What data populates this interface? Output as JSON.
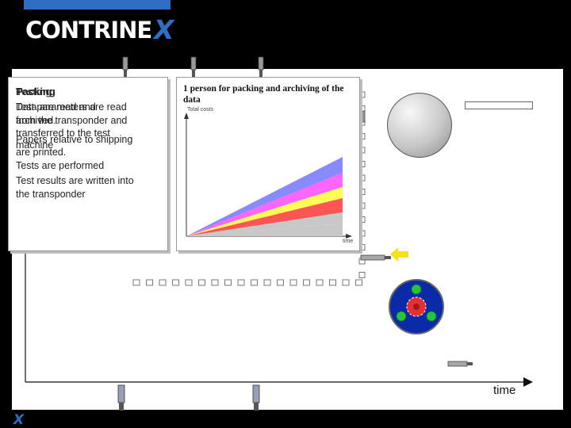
{
  "brand": {
    "logo_text": "CONTRINE",
    "logo_accent": "X",
    "small_logo": "X"
  },
  "left_panel": {
    "title": "Packing",
    "overlaid_titles": [
      "Testing"
    ],
    "lines": [
      "Data are read and",
      "Test parameters are read",
      "archived.",
      "from the transponder and",
      "transferred to the test",
      "Papers relative to shipping",
      "machine",
      "are printed.",
      "Tests are performed",
      "Test results are written into",
      "the transponder"
    ]
  },
  "mid_panel": {
    "caption": "1 person for packing and archiving of the data"
  },
  "chart_data": {
    "type": "area",
    "title": "",
    "ylabel": "Total costs",
    "xlabel": "time",
    "series": [
      {
        "color": "#8a8aff"
      },
      {
        "color": "#ff66ff"
      },
      {
        "color": "#ffff55"
      },
      {
        "color": "#ff5555"
      },
      {
        "color": "#c8c8c8"
      }
    ]
  },
  "diagram": {
    "time_label": "time"
  },
  "colors": {
    "brand_blue": "#2f6ec2",
    "arrow_yellow": "#f5e11a",
    "gear_green": "#22c832",
    "gear_red": "#e53030",
    "disc_blue": "#0b2aa8"
  }
}
